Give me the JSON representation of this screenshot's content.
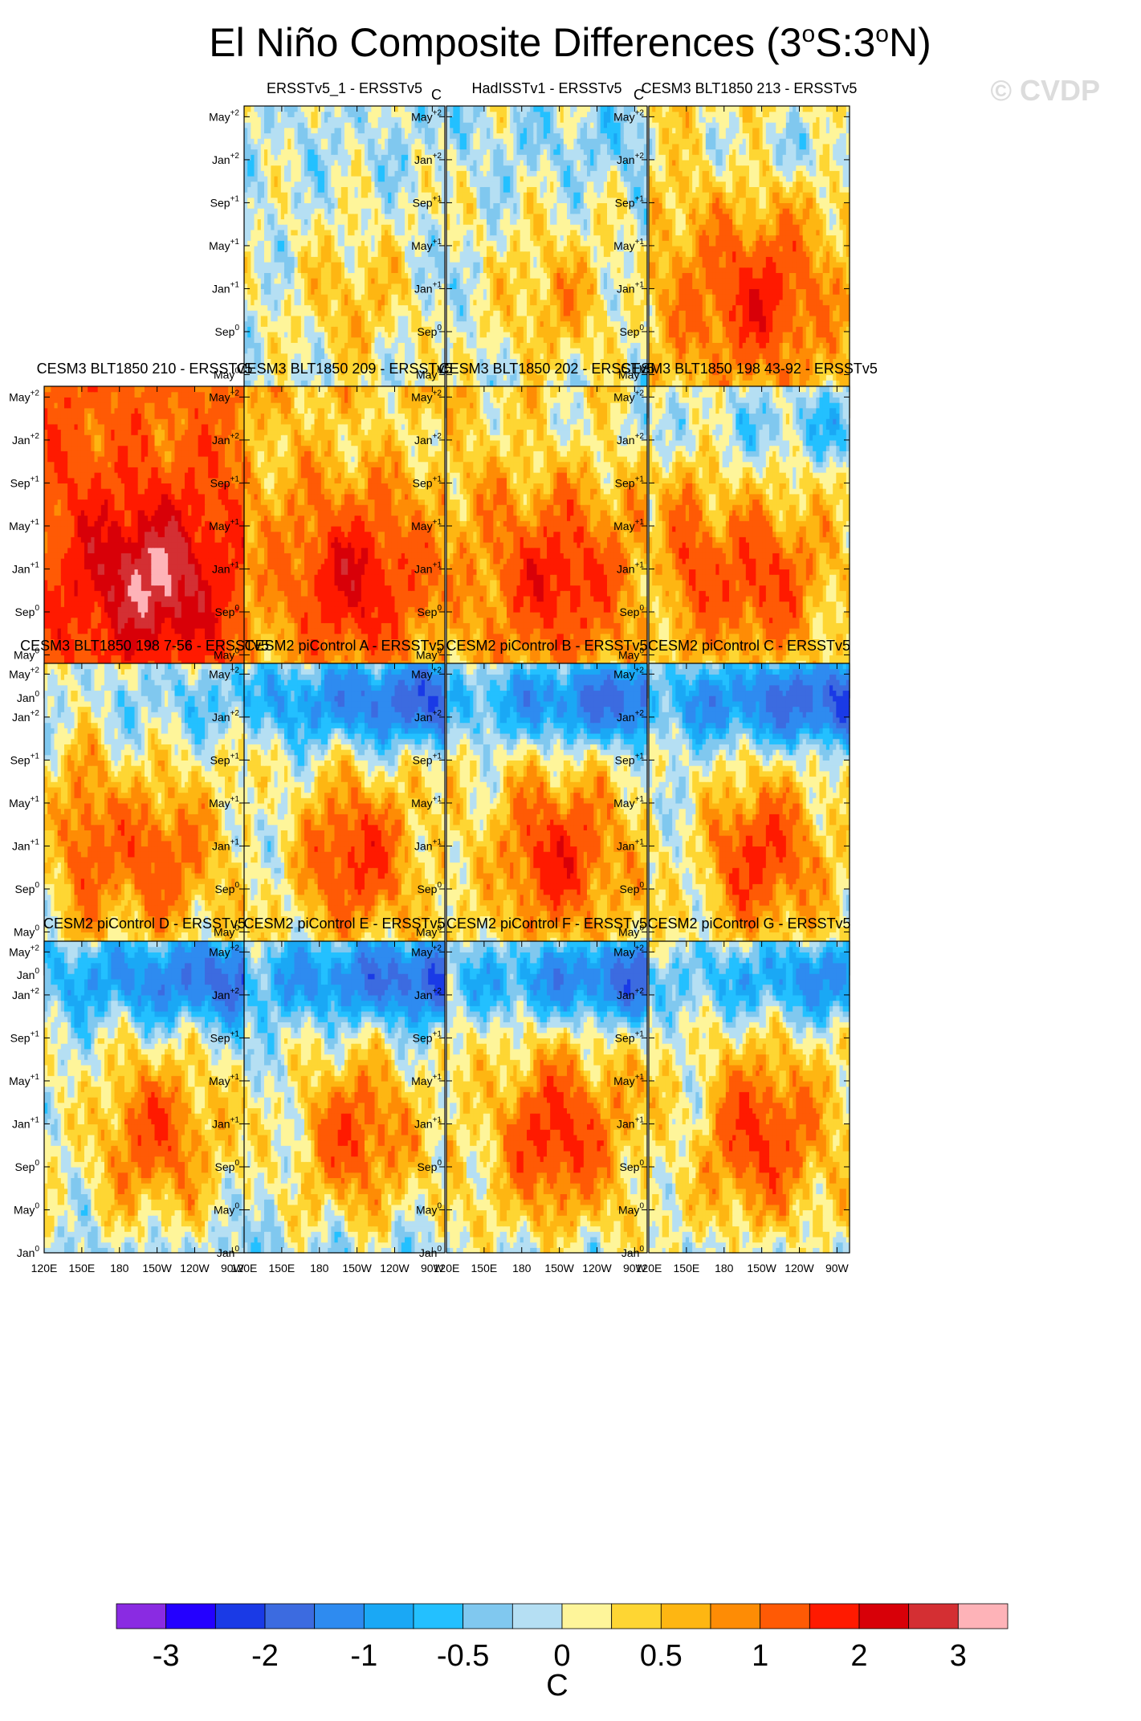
{
  "chart_data": {
    "type": "heatmap",
    "title": "El Niño Composite Differences (3",
    "title_sup1": "o",
    "title_mid": "S:3",
    "title_sup2": "o",
    "title_end": "N)",
    "watermark": "© CVDP",
    "x_tick_values": [
      150,
      180,
      210,
      240,
      270
    ],
    "x_tick_labels": [
      "150E",
      "180",
      "150W",
      "120W",
      "90W"
    ],
    "x_first_tick": "120E",
    "x_range": [
      120,
      280
    ],
    "y_range": [
      0,
      29
    ],
    "y_tick_values": [
      0,
      4,
      8,
      12,
      16,
      20,
      24,
      28
    ],
    "y_ticks": [
      {
        "base": "Jan",
        "sup": "0"
      },
      {
        "base": "May",
        "sup": "0"
      },
      {
        "base": "Sep",
        "sup": "0"
      },
      {
        "base": "Jan",
        "sup": "+1"
      },
      {
        "base": "May",
        "sup": "+1"
      },
      {
        "base": "Sep",
        "sup": "+1"
      },
      {
        "base": "Jan",
        "sup": "+2"
      },
      {
        "base": "May",
        "sup": "+2"
      }
    ],
    "colorbar": {
      "colors": [
        "#8a2be2",
        "#2400ff",
        "#1a3ae6",
        "#3c6be0",
        "#2e8bf0",
        "#1aa8f5",
        "#23c0ff",
        "#80c8ef",
        "#b5dff3",
        "#fef59a",
        "#fed633",
        "#feb612",
        "#fe8c05",
        "#ff5a05",
        "#ff1a00",
        "#d80008",
        "#d42f33",
        "#feb3b8"
      ],
      "labels": [
        "-3",
        "-2",
        "-1",
        "-0.5",
        "0",
        "0.5",
        "1",
        "2",
        "3"
      ],
      "unit": "C"
    },
    "panels": [
      {
        "title": "ERSSTv5_1 - ERSSTv5",
        "unit": "C",
        "show_120E": true,
        "field": {
          "mean": -0.05,
          "amp": 0.45,
          "west": 0.0,
          "late": -0.1,
          "seed": 1
        }
      },
      {
        "title": "HadISSTv1 - ERSSTv5",
        "unit": "C",
        "show_120E": false,
        "field": {
          "mean": 0.0,
          "amp": 0.5,
          "west": 0.0,
          "late": -0.3,
          "seed": 2
        }
      },
      {
        "title": "CESM3 BLT1850 213 - ERSSTv5",
        "unit": "",
        "show_120E": false,
        "field": {
          "mean": 0.5,
          "amp": 0.9,
          "west": 0.2,
          "late": -0.6,
          "seed": 3
        }
      },
      {
        "title": "CESM3 BLT1850 210 - ERSSTv5",
        "unit": "",
        "show_120E": false,
        "field": {
          "mean": 1.3,
          "amp": 1.3,
          "west": 0.3,
          "late": -0.2,
          "seed": 4
        }
      },
      {
        "title": "CESM3 BLT1850 209 - ERSSTv5",
        "unit": "",
        "show_120E": false,
        "field": {
          "mean": 0.7,
          "amp": 1.0,
          "west": 0.0,
          "late": -0.4,
          "seed": 5
        }
      },
      {
        "title": "CESM3 BLT1850 202 - ERSSTv5",
        "unit": "",
        "show_120E": false,
        "field": {
          "mean": 0.6,
          "amp": 0.9,
          "west": 0.1,
          "late": -0.5,
          "seed": 6
        }
      },
      {
        "title": "CESM3 BLT1850 198 43-92 - ERSSTv5",
        "unit": "",
        "show_120E": false,
        "field": {
          "mean": 0.3,
          "amp": 0.9,
          "west": 0.8,
          "late": -0.7,
          "seed": 7
        }
      },
      {
        "title": "CESM3 BLT1850 198 7-56 - ERSSTv5",
        "unit": "",
        "show_120E": false,
        "field": {
          "mean": 0.2,
          "amp": 0.8,
          "west": 0.9,
          "late": -0.6,
          "seed": 8
        }
      },
      {
        "title": "CESM2 piControl A - ERSSTv5",
        "unit": "",
        "show_120E": true,
        "field": {
          "mean": 0.2,
          "amp": 1.0,
          "west": -0.3,
          "late": -1.8,
          "seed": 9
        }
      },
      {
        "title": "CESM2 piControl B - ERSSTv5",
        "unit": "",
        "show_120E": true,
        "field": {
          "mean": 0.3,
          "amp": 1.0,
          "west": -0.2,
          "late": -1.8,
          "seed": 10
        }
      },
      {
        "title": "CESM2 piControl C - ERSSTv5",
        "unit": "",
        "show_120E": true,
        "field": {
          "mean": 0.2,
          "amp": 1.0,
          "west": -0.4,
          "late": -1.9,
          "seed": 11
        }
      },
      {
        "title": "CESM2 piControl D - ERSSTv5",
        "unit": "",
        "show_120E": true,
        "field": {
          "mean": 0.1,
          "amp": 0.9,
          "west": -0.2,
          "late": -1.6,
          "seed": 12
        }
      },
      {
        "title": "CESM2 piControl E - ERSSTv5",
        "unit": "",
        "show_120E": true,
        "field": {
          "mean": 0.1,
          "amp": 0.9,
          "west": -0.3,
          "late": -1.7,
          "seed": 13
        }
      },
      {
        "title": "CESM2 piControl F - ERSSTv5",
        "unit": "",
        "show_120E": true,
        "field": {
          "mean": 0.3,
          "amp": 1.0,
          "west": -0.2,
          "late": -1.7,
          "seed": 14
        }
      },
      {
        "title": "CESM2 piControl G - ERSSTv5",
        "unit": "",
        "show_120E": true,
        "field": {
          "mean": 0.3,
          "amp": 0.9,
          "west": -0.4,
          "late": -1.3,
          "seed": 15
        }
      }
    ]
  }
}
